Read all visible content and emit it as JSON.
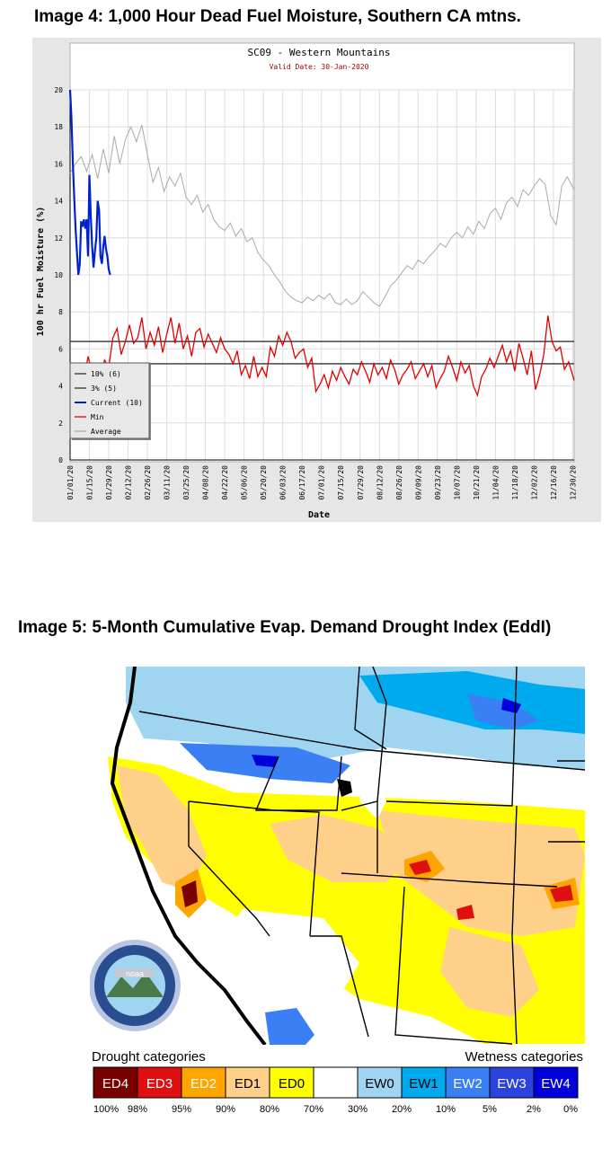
{
  "heading_4": "Image 4: 1,000 Hour Dead Fuel Moisture, Southern CA mtns.",
  "chart_data": {
    "type": "line",
    "title": "SC09 - Western Mountains",
    "subtitle": "Valid Date: 30-Jan-2020",
    "xlabel": "Date",
    "ylabel": "100 hr Fuel Moisture (%)",
    "ylim": [
      0,
      20
    ],
    "y_ticks": [
      0,
      2,
      4,
      6,
      8,
      10,
      12,
      14,
      16,
      18,
      20
    ],
    "x_ticks": [
      "01/01/20",
      "01/15/20",
      "01/29/20",
      "02/12/20",
      "02/26/20",
      "03/11/20",
      "03/25/20",
      "04/08/20",
      "04/22/20",
      "05/06/20",
      "05/20/20",
      "06/03/20",
      "06/17/20",
      "07/01/20",
      "07/15/20",
      "07/29/20",
      "08/12/20",
      "08/26/20",
      "09/09/20",
      "09/23/20",
      "10/07/20",
      "10/21/20",
      "11/04/20",
      "11/18/20",
      "12/02/20",
      "12/16/20",
      "12/30/20"
    ],
    "grid": true,
    "legend_position": "bottom-left",
    "colors": {
      "ten_pct": "#333333",
      "three_pct": "#333333",
      "current": "#0022cc",
      "min": "#e00000",
      "average": "#aaaaaa"
    },
    "thresholds": [
      {
        "name": "10% (6)",
        "value": 6.4
      },
      {
        "name": "3% (5)",
        "value": 5.2
      }
    ],
    "series": [
      {
        "name": "Average",
        "x": [
          1,
          5,
          9,
          13,
          17,
          21,
          25,
          29,
          33,
          37,
          41,
          45,
          49,
          53,
          57,
          61,
          65,
          69,
          73,
          77,
          81,
          85,
          89,
          93,
          97,
          101,
          105,
          109,
          113,
          117,
          121,
          125,
          129,
          133,
          137,
          141,
          145,
          149,
          153,
          157,
          161,
          165,
          169,
          173,
          177,
          181,
          185,
          189,
          193,
          197,
          201,
          205,
          209,
          213,
          217,
          221,
          225,
          229,
          233,
          237,
          241,
          245,
          249,
          253,
          257,
          261,
          265,
          269,
          273,
          277,
          281,
          285,
          289,
          293,
          297,
          301,
          305,
          309,
          313,
          317,
          321,
          325,
          329,
          333,
          337,
          341,
          345,
          349,
          353,
          357,
          361,
          366
        ],
        "y": [
          15.5,
          16.0,
          16.4,
          15.6,
          16.5,
          15.2,
          16.8,
          15.5,
          17.5,
          16.0,
          17.3,
          18.0,
          17.2,
          18.1,
          16.5,
          15.0,
          15.8,
          14.5,
          15.3,
          14.8,
          15.5,
          14.2,
          13.8,
          14.3,
          13.4,
          13.8,
          13.0,
          12.6,
          12.4,
          12.8,
          12.1,
          12.5,
          11.8,
          12.0,
          11.2,
          10.8,
          10.5,
          10.0,
          9.6,
          9.1,
          8.8,
          8.6,
          8.5,
          8.8,
          8.6,
          8.9,
          8.7,
          9.0,
          8.5,
          8.4,
          8.7,
          8.4,
          8.6,
          9.1,
          8.8,
          8.5,
          8.3,
          8.8,
          9.4,
          9.7,
          10.1,
          10.5,
          10.3,
          10.8,
          10.6,
          11.0,
          11.3,
          11.7,
          11.5,
          12.0,
          12.3,
          12.0,
          12.6,
          12.2,
          12.9,
          12.5,
          13.3,
          13.6,
          13.0,
          13.9,
          14.2,
          13.7,
          14.6,
          14.3,
          14.8,
          15.2,
          14.9,
          13.2,
          12.7,
          14.8,
          15.3,
          14.6
        ]
      },
      {
        "name": "Min",
        "x": [
          1,
          3,
          5,
          8,
          11,
          14,
          17,
          20,
          23,
          26,
          29,
          32,
          35,
          38,
          41,
          44,
          47,
          50,
          53,
          56,
          59,
          62,
          65,
          68,
          71,
          74,
          77,
          80,
          83,
          86,
          89,
          92,
          95,
          98,
          101,
          104,
          107,
          110,
          113,
          116,
          119,
          122,
          125,
          128,
          131,
          134,
          137,
          140,
          143,
          146,
          149,
          152,
          155,
          158,
          161,
          164,
          167,
          170,
          173,
          176,
          179,
          182,
          185,
          188,
          191,
          194,
          197,
          200,
          203,
          206,
          209,
          212,
          215,
          218,
          221,
          224,
          227,
          230,
          233,
          236,
          239,
          242,
          245,
          248,
          251,
          254,
          257,
          260,
          263,
          266,
          269,
          272,
          275,
          278,
          281,
          284,
          287,
          290,
          293,
          296,
          299,
          302,
          305,
          308,
          311,
          314,
          317,
          320,
          323,
          326,
          329,
          332,
          335,
          338,
          341,
          344,
          347,
          350,
          353,
          356,
          359,
          362,
          366
        ],
        "y": [
          4.5,
          3.6,
          4.1,
          5.0,
          4.3,
          5.6,
          4.7,
          5.2,
          4.6,
          5.4,
          5.0,
          6.6,
          7.1,
          5.7,
          6.4,
          7.3,
          6.3,
          6.6,
          7.7,
          6.0,
          6.9,
          6.2,
          7.2,
          5.8,
          6.8,
          7.7,
          6.3,
          7.4,
          6.0,
          6.7,
          5.6,
          6.9,
          7.1,
          6.1,
          6.8,
          6.3,
          5.8,
          6.6,
          6.0,
          5.7,
          5.2,
          5.9,
          4.6,
          5.1,
          4.4,
          5.6,
          4.5,
          5.0,
          4.5,
          6.1,
          5.6,
          6.7,
          6.2,
          6.9,
          6.4,
          5.5,
          5.8,
          6.0,
          5.0,
          5.5,
          3.7,
          4.1,
          4.6,
          3.9,
          4.8,
          4.3,
          5.0,
          4.5,
          4.1,
          4.9,
          4.6,
          5.3,
          4.8,
          4.2,
          5.2,
          4.6,
          5.0,
          4.4,
          5.4,
          4.9,
          4.1,
          4.6,
          4.9,
          5.3,
          4.4,
          4.8,
          5.2,
          4.5,
          5.1,
          3.9,
          4.4,
          4.8,
          5.6,
          5.0,
          4.3,
          5.3,
          4.7,
          5.1,
          4.0,
          3.5,
          4.5,
          4.9,
          5.5,
          5.0,
          5.6,
          6.2,
          5.3,
          5.9,
          4.8,
          6.3,
          5.5,
          4.6,
          5.9,
          3.8,
          4.6,
          5.7,
          7.8,
          6.4,
          5.9,
          6.1,
          4.9,
          5.3,
          4.3
        ]
      },
      {
        "name": "Current",
        "x": [
          1,
          2,
          3,
          4,
          5,
          6,
          7,
          8,
          9,
          10,
          11,
          12,
          13,
          14,
          15,
          16,
          17,
          18,
          19,
          20,
          21,
          22,
          23,
          24,
          25,
          26,
          27,
          28,
          29,
          30
        ],
        "y": [
          20.0,
          18.5,
          16.0,
          14.2,
          12.5,
          11.2,
          10.0,
          10.6,
          12.9,
          12.6,
          13.0,
          12.5,
          13.0,
          11.0,
          15.4,
          13.1,
          11.5,
          10.4,
          11.3,
          12.0,
          14.0,
          13.5,
          11.0,
          10.6,
          11.5,
          12.1,
          11.4,
          11.0,
          10.3,
          10.0
        ]
      }
    ],
    "legend_entries": [
      "10% (6)",
      "3% (5)",
      "Current (10)",
      "Min",
      "Average"
    ]
  },
  "heading_5": "Image 5: 5-Month Cumulative Evap. Demand Drought Index (EddI)",
  "map": {
    "logo_text": "noaa",
    "drought_label": "Drought categories",
    "wetness_label": "Wetness categories",
    "categories": [
      {
        "label": "ED4",
        "color": "#7a0000",
        "text_color": "#ffffff"
      },
      {
        "label": "ED3",
        "color": "#e01010",
        "text_color": "#ffffff"
      },
      {
        "label": "ED2",
        "color": "#ffa500",
        "text_color": "#ffffff"
      },
      {
        "label": "ED1",
        "color": "#ffd089",
        "text_color": "#000000"
      },
      {
        "label": "ED0",
        "color": "#ffff00",
        "text_color": "#000000"
      },
      {
        "label": "",
        "color": "#ffffff",
        "text_color": "#000000"
      },
      {
        "label": "EW0",
        "color": "#9fd5f0",
        "text_color": "#000000"
      },
      {
        "label": "EW1",
        "color": "#00aaee",
        "text_color": "#000000"
      },
      {
        "label": "EW2",
        "color": "#3b7ff5",
        "text_color": "#ffffff"
      },
      {
        "label": "EW3",
        "color": "#2c43e0",
        "text_color": "#ffffff"
      },
      {
        "label": "EW4",
        "color": "#0000dd",
        "text_color": "#ffffff"
      }
    ],
    "percentiles": [
      "100%",
      "98%",
      "95%",
      "90%",
      "80%",
      "70%",
      "30%",
      "20%",
      "10%",
      "5%",
      "2%",
      "0%"
    ]
  }
}
